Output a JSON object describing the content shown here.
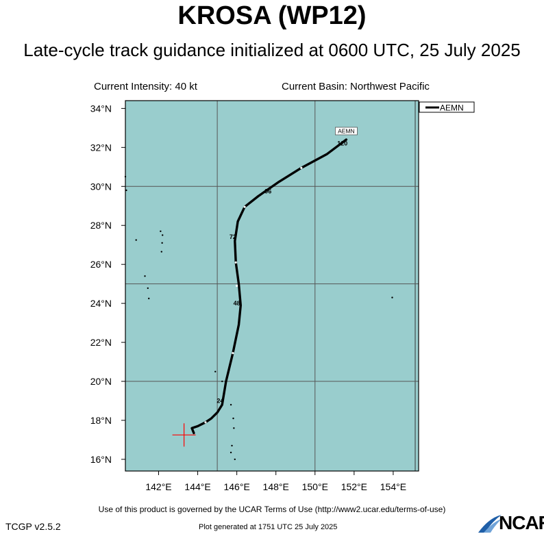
{
  "header": {
    "title": "KROSA (WP12)",
    "subtitle": "Late-cycle track guidance initialized at 0600 UTC, 25 July 2025",
    "intensity": "Current Intensity: 40 kt",
    "basin": "Current Basin: Northwest Pacific"
  },
  "footer": {
    "terms": "Use of this product is governed by the UCAR Terms of Use (http://www2.ucar.edu/terms-of-use)",
    "version": "TCGP v2.5.2",
    "generated": "Plot generated at 1751 UTC   25 July 2025",
    "logo_text": "NCAR"
  },
  "colors": {
    "ocean": "#99cdcd",
    "track": "#000000",
    "current_marker": "#ff0000",
    "grid": "#555555"
  },
  "chart_data": {
    "type": "line",
    "xlabel": "",
    "ylabel": "",
    "xlim": [
      140.3,
      155.3
    ],
    "ylim": [
      15.4,
      34.4
    ],
    "x_ticks": [
      142,
      144,
      146,
      148,
      150,
      152,
      154
    ],
    "x_tick_labels": [
      "142°E",
      "144°E",
      "146°E",
      "148°E",
      "150°E",
      "152°E",
      "154°E"
    ],
    "y_ticks": [
      16,
      18,
      20,
      22,
      24,
      26,
      28,
      30,
      32,
      34
    ],
    "y_tick_labels": [
      "16°N",
      "18°N",
      "20°N",
      "22°N",
      "24°N",
      "26°N",
      "28°N",
      "30°N",
      "32°N",
      "34°N"
    ],
    "grid_x": [
      145,
      150
    ],
    "grid_y": [
      20,
      25,
      30
    ],
    "legend": {
      "position": "top-right",
      "entries": [
        "AEMN"
      ]
    },
    "current_position": {
      "lon": 143.3,
      "lat": 17.25
    },
    "series": [
      {
        "name": "AEMN",
        "end_label": "AEMN",
        "points": [
          [
            143.8,
            17.35
          ],
          [
            143.7,
            17.6
          ],
          [
            144.0,
            17.7
          ],
          [
            144.4,
            17.9
          ],
          [
            144.7,
            18.1
          ],
          [
            145.0,
            18.4
          ],
          [
            145.25,
            18.8
          ],
          [
            145.45,
            20.0
          ],
          [
            145.8,
            21.45
          ],
          [
            146.1,
            22.9
          ],
          [
            146.2,
            23.9
          ],
          [
            146.1,
            25.0
          ],
          [
            145.95,
            26.1
          ],
          [
            145.9,
            27.2
          ],
          [
            146.05,
            28.2
          ],
          [
            146.4,
            28.95
          ],
          [
            147.1,
            29.5
          ],
          [
            148.1,
            30.2
          ],
          [
            149.3,
            30.95
          ],
          [
            150.6,
            31.65
          ],
          [
            151.6,
            32.4
          ]
        ],
        "markers": [
          {
            "lon": 144.4,
            "lat": 17.9
          },
          {
            "lon": 145.8,
            "lat": 21.45
          },
          {
            "lon": 146.0,
            "lat": 24.9
          },
          {
            "lon": 145.95,
            "lat": 26.1
          },
          {
            "lon": 146.4,
            "lat": 28.95
          },
          {
            "lon": 149.3,
            "lat": 30.95
          }
        ],
        "hour_labels": [
          {
            "text": "24",
            "lon": 145.15,
            "lat": 18.9
          },
          {
            "text": "48",
            "lon": 146.0,
            "lat": 23.9
          },
          {
            "text": "72",
            "lon": 145.8,
            "lat": 27.3
          },
          {
            "text": "96",
            "lon": 147.6,
            "lat": 29.65
          },
          {
            "text": "120",
            "lon": 151.4,
            "lat": 32.1
          }
        ]
      }
    ],
    "islands": [
      [
        142.1,
        27.7
      ],
      [
        142.2,
        27.5
      ],
      [
        142.18,
        27.1
      ],
      [
        142.15,
        26.65
      ],
      [
        141.3,
        25.4
      ],
      [
        141.45,
        24.78
      ],
      [
        141.5,
        24.25
      ],
      [
        140.85,
        27.25
      ],
      [
        140.3,
        30.5
      ],
      [
        140.35,
        29.8
      ],
      [
        145.7,
        18.8
      ],
      [
        145.82,
        18.1
      ],
      [
        145.85,
        17.6
      ],
      [
        145.7,
        16.35
      ],
      [
        145.9,
        16.0
      ],
      [
        144.9,
        20.5
      ],
      [
        145.25,
        20.0
      ],
      [
        145.75,
        16.7
      ],
      [
        153.95,
        24.3
      ]
    ]
  }
}
